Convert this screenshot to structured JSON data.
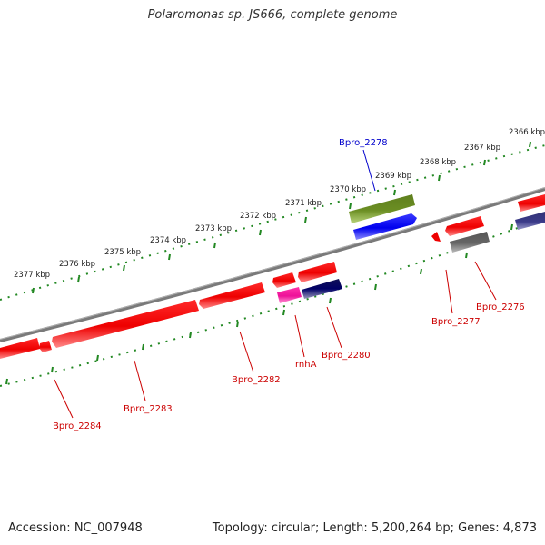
{
  "title": "Polaromonas sp. JS666, complete genome",
  "footer": {
    "accession": "Accession: NC_007948",
    "summary": "Topology: circular; Length: 5,200,264 bp; Genes: 4,873"
  },
  "colors": {
    "backbone": "#7a7a7a",
    "tick_dots": "#228822",
    "feature_label": "#cc0000",
    "selected_label": "#0000cc"
  },
  "kbp_labels": [
    "2366 kbp",
    "2367 kbp",
    "2368 kbp",
    "2369 kbp",
    "2370 kbp",
    "2371 kbp",
    "2372 kbp",
    "2373 kbp",
    "2374 kbp",
    "2375 kbp",
    "2376 kbp",
    "2377 kbp"
  ],
  "gene_labels": {
    "bpro_2278": "Bpro_2278",
    "bpro_2276": "Bpro_2276",
    "bpro_2277": "Bpro_2277",
    "bpro_2280": "Bpro_2280",
    "rnhA": "rnhA",
    "bpro_2282": "Bpro_2282",
    "bpro_2283": "Bpro_2283",
    "bpro_2284": "Bpro_2284"
  }
}
